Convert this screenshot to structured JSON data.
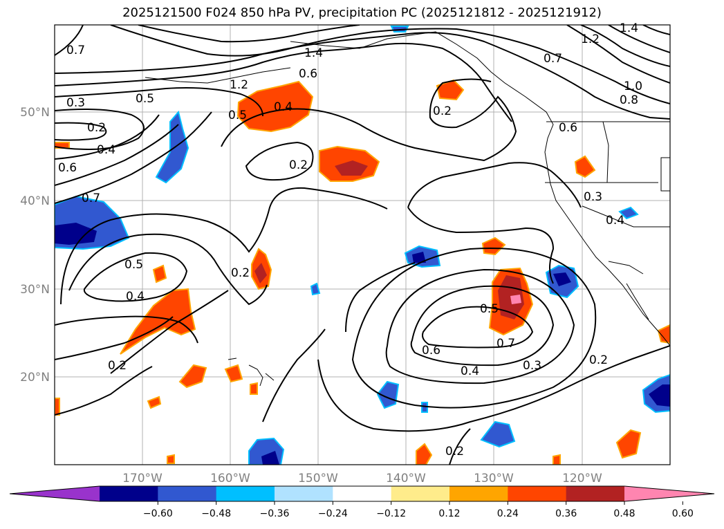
{
  "title": "2025121500 F024 850 hPa PV, precipitation PC (2025121812 - 2025121912)",
  "latitude_labels": [
    "50°N",
    "40°N",
    "30°N",
    "20°N"
  ],
  "longitude_labels": [
    "170°W",
    "160°W",
    "150°W",
    "140°W",
    "130°W",
    "120°W"
  ],
  "colorbar": {
    "colors": [
      "#9933cc",
      "#00008b",
      "#3158d0",
      "#00bfff",
      "#b0e2ff",
      "#ffffff",
      "#ffec8b",
      "#ffa500",
      "#ff4500",
      "#b22222",
      "#ff85b0"
    ],
    "tick_labels": [
      "−0.60",
      "−0.48",
      "−0.36",
      "−0.24",
      "−0.12",
      "0.12",
      "0.24",
      "0.36",
      "0.48",
      "0.60"
    ]
  },
  "contour_labels": [
    "0.7",
    "1.4",
    "0.6",
    "1.2",
    "0.5",
    "0.4",
    "0.3",
    "0.2",
    "0.4",
    "0.6",
    "0.7",
    "0.2",
    "0.5",
    "0.4",
    "0.2",
    "0.2",
    "0.5",
    "0.7",
    "0.6",
    "0.4",
    "0.3",
    "0.2",
    "0.2",
    "0.8",
    "1.0",
    "1.2",
    "0.6",
    "0.3",
    "0.4",
    "0.7",
    "1.4",
    "0.2"
  ]
}
